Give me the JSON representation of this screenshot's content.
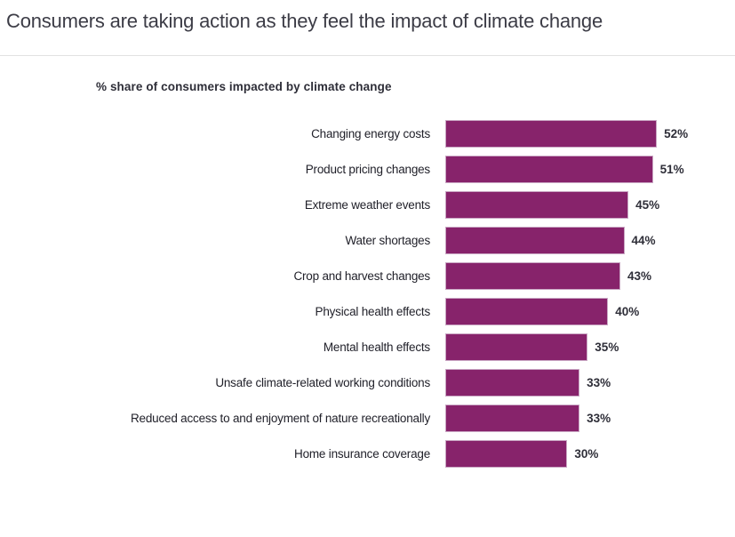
{
  "page": {
    "title": "Consumers are taking action as they feel the impact of climate change"
  },
  "chart_data": {
    "type": "bar",
    "orientation": "horizontal",
    "title": "% share of consumers impacted by climate change",
    "categories": [
      "Changing energy costs",
      "Product pricing changes",
      "Extreme weather events",
      "Water shortages",
      "Crop and harvest changes",
      "Physical health effects",
      "Mental health effects",
      "Unsafe climate-related working conditions",
      "Reduced access to and enjoyment of nature recreationally",
      "Home insurance coverage"
    ],
    "values": [
      52,
      51,
      45,
      44,
      43,
      40,
      35,
      33,
      33,
      30
    ],
    "value_labels": [
      "52%",
      "51%",
      "45%",
      "44%",
      "43%",
      "40%",
      "35%",
      "33%",
      "33%",
      "30%"
    ],
    "xlim": [
      0,
      100
    ],
    "grid": false,
    "legend": false,
    "data_label_position": "right-of-bar",
    "bar_color": "#87236B",
    "bar_border_color": "#C9A6C3"
  }
}
